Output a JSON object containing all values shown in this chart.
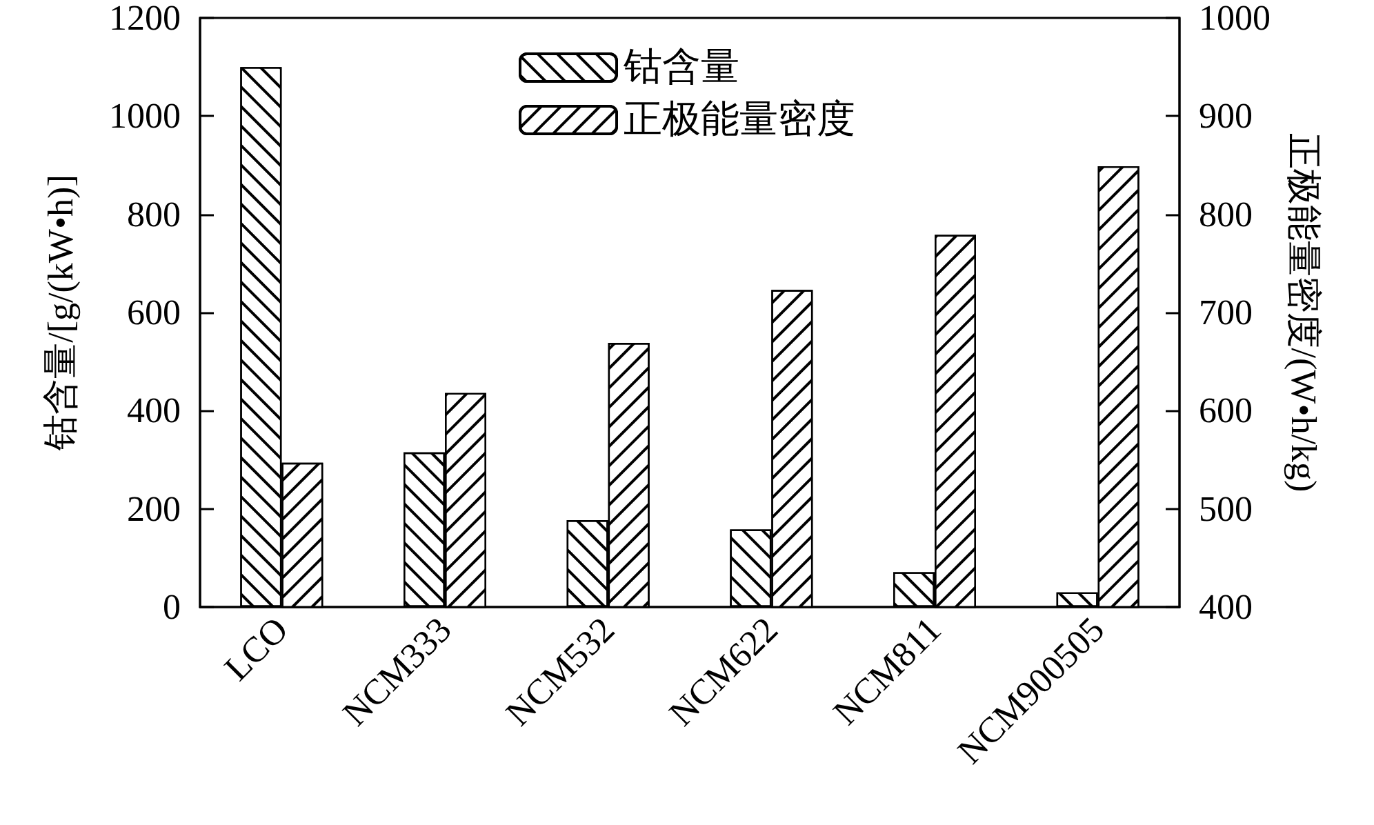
{
  "chart_data": {
    "type": "bar",
    "categories": [
      "LCO",
      "NCM333",
      "NCM532",
      "NCM622",
      "NCM811",
      "NCM900505"
    ],
    "ylabel": "钴含量/[g/(kW•h)]",
    "y2label": "正极能量密度/(W•h/kg)",
    "series": [
      {
        "name": "钴含量",
        "color": "#ffffff",
        "values": [
          1100,
          315,
          177,
          158,
          71,
          30
        ]
      },
      {
        "name": "正极能量密度",
        "color": "#ffffff",
        "axis": "y2",
        "values": [
          547,
          618,
          669,
          723,
          779,
          849
        ]
      }
    ],
    "ylim": [
      0,
      1200
    ],
    "yticks": [
      0,
      200,
      400,
      600,
      800,
      1000,
      1200
    ],
    "y2lim": [
      400,
      1000
    ],
    "y2ticks": [
      400,
      500,
      600,
      700,
      800,
      900,
      1000
    ],
    "grid": false,
    "legend": "top"
  }
}
